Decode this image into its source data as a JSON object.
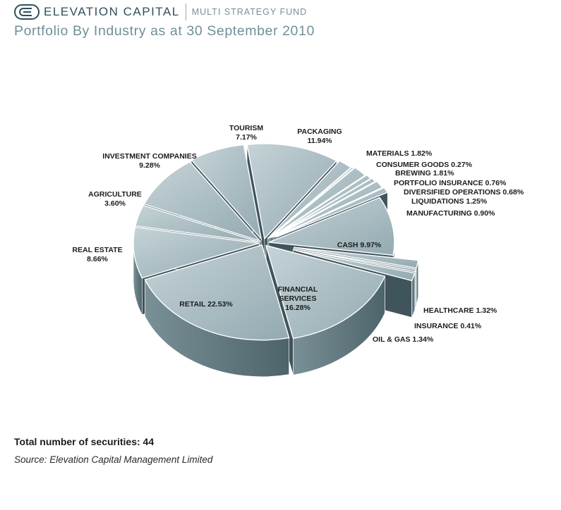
{
  "header": {
    "brand": "ELEVATION CAPITAL",
    "fund": "MULTI STRATEGY FUND",
    "logo_icon": "elevation-capital-logo-icon"
  },
  "title": "Portfolio By Industry as at 30 September 2010",
  "chart_data": {
    "type": "pie",
    "style": "3d-exploded",
    "slices": [
      {
        "key": "packaging",
        "name": "PACKAGING",
        "value": 11.94,
        "label": [
          "PACKAGING",
          "11.94%"
        ]
      },
      {
        "key": "materials",
        "name": "MATERIALS",
        "value": 1.82,
        "label": [
          "MATERIALS 1.82%"
        ]
      },
      {
        "key": "consumer_goods",
        "name": "CONSUMER GOODS",
        "value": 0.27,
        "label": [
          "CONSUMER GOODS 0.27%"
        ]
      },
      {
        "key": "brewing",
        "name": "BREWING",
        "value": 1.81,
        "label": [
          "BREWING 1.81%"
        ]
      },
      {
        "key": "portfolio_insurance",
        "name": "PORTFOLIO INSURANCE",
        "value": 0.76,
        "label": [
          "PORTFOLIO INSURANCE 0.76%"
        ]
      },
      {
        "key": "diversified_operations",
        "name": "DIVERSIFIED OPERATIONS",
        "value": 0.68,
        "label": [
          "DIVERSIFIED OPERATIONS 0.68%"
        ]
      },
      {
        "key": "liquidations",
        "name": "LIQUIDATIONS",
        "value": 1.25,
        "label": [
          "LIQUIDATIONS 1.25%"
        ]
      },
      {
        "key": "manufacturing",
        "name": "MANUFACTURING",
        "value": 0.9,
        "label": [
          "MANUFACTURING 0.90%"
        ]
      },
      {
        "key": "cash",
        "name": "CASH",
        "value": 9.97,
        "label": [
          "CASH 9.97%"
        ]
      },
      {
        "key": "healthcare",
        "name": "HEALTHCARE",
        "value": 1.32,
        "label": [
          "HEALTHCARE 1.32%"
        ]
      },
      {
        "key": "insurance",
        "name": "INSURANCE",
        "value": 0.41,
        "label": [
          "INSURANCE  0.41%"
        ]
      },
      {
        "key": "oil_gas",
        "name": "OIL & GAS",
        "value": 1.34,
        "label": [
          "OIL & GAS 1.34%"
        ]
      },
      {
        "key": "financial_services",
        "name": "FINANCIAL SERVICES",
        "value": 16.28,
        "label": [
          "FINANCIAL",
          "SERVICES",
          "16.28%"
        ]
      },
      {
        "key": "retail",
        "name": "RETAIL",
        "value": 22.53,
        "label": [
          "RETAIL 22.53%"
        ]
      },
      {
        "key": "real_estate",
        "name": "REAL ESTATE",
        "value": 8.66,
        "label": [
          "REAL ESTATE",
          "8.66%"
        ]
      },
      {
        "key": "agriculture",
        "name": "AGRICULTURE",
        "value": 3.6,
        "label": [
          "AGRICULTURE",
          "3.60%"
        ]
      },
      {
        "key": "investment_companies",
        "name": "INVESTMENT COMPANIES",
        "value": 9.28,
        "label": [
          "INVESTMENT COMPANIES",
          "9.28%"
        ]
      },
      {
        "key": "tourism",
        "name": "TOURISM",
        "value": 7.17,
        "label": [
          "TOURISM",
          "7.17%"
        ]
      }
    ],
    "colors": {
      "top": "#a9bcc2",
      "side": "#5a6f76",
      "wall": "#3f545b"
    }
  },
  "footer": {
    "total": "Total number of securities: 44",
    "source": "Source: Elevation Capital Management Limited"
  }
}
